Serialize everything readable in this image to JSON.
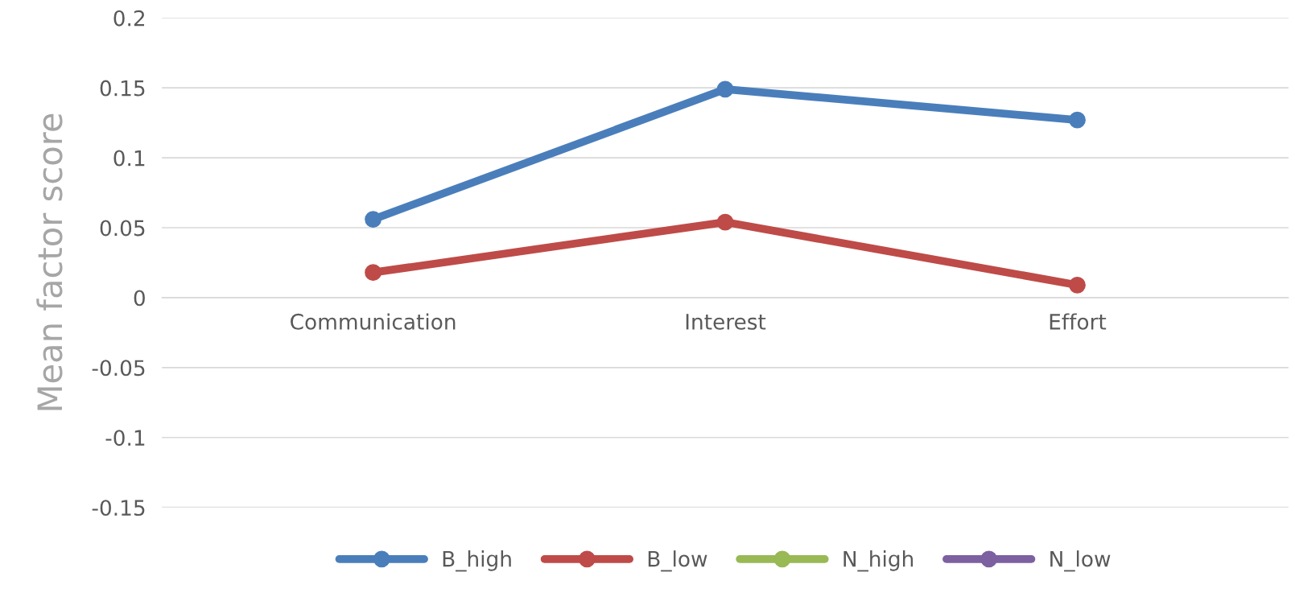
{
  "chart_data": {
    "type": "line",
    "ylabel": "Mean factor score",
    "categories": [
      "Communication",
      "Interest",
      "Effort"
    ],
    "series": [
      {
        "name": "B_high",
        "color": "#4a7ebb",
        "values": [
          0.056,
          0.149,
          0.127
        ]
      },
      {
        "name": "B_low",
        "color": "#be4b48",
        "values": [
          0.018,
          0.054,
          0.009
        ]
      },
      {
        "name": "N_high",
        "color": "#98b954",
        "values": [
          null,
          null,
          null
        ]
      },
      {
        "name": "N_low",
        "color": "#7d60a0",
        "values": [
          null,
          null,
          null
        ]
      }
    ],
    "ylim": [
      -0.15,
      0.2
    ],
    "yticks": [
      -0.15,
      -0.1,
      -0.05,
      0,
      0.05,
      0.1,
      0.15,
      0.2
    ],
    "grid": "y",
    "legend": "bottom",
    "marker": "circle",
    "line_style": "solid"
  }
}
